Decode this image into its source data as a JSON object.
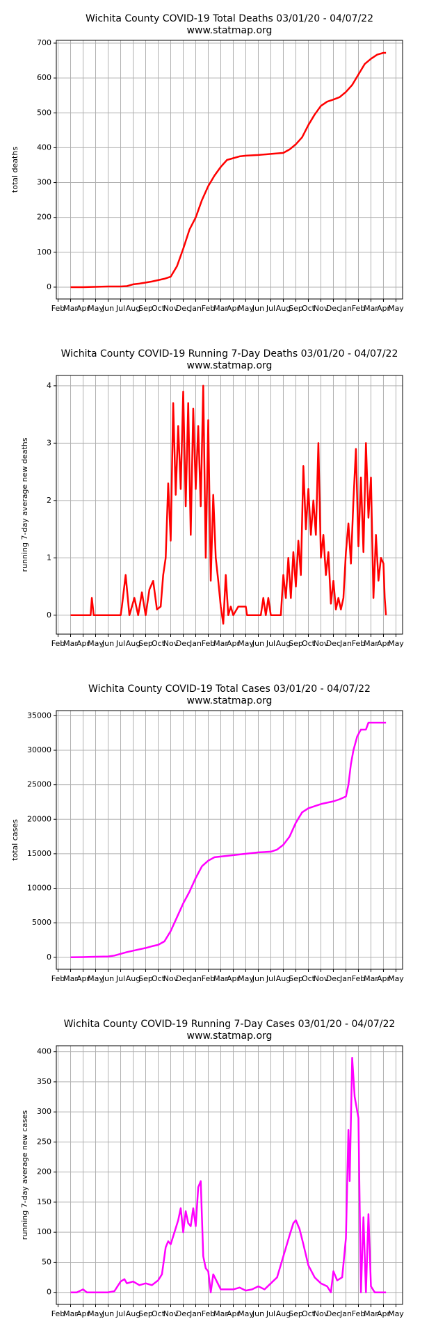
{
  "chart_data": [
    {
      "type": "line",
      "title": "Wichita County COVID-19 Total Deaths 03/01/20 - 04/07/22",
      "subtitle": "www.statmap.org",
      "y_label": "total deaths",
      "color": "#ff0000",
      "grid": true,
      "x": [
        1,
        2,
        3,
        4,
        5,
        5.5,
        6,
        6.5,
        7,
        7.5,
        8,
        8.5,
        9,
        9.5,
        10,
        10.5,
        11,
        11.5,
        12,
        12.5,
        13,
        13.5,
        14,
        14.5,
        15,
        16,
        17,
        18,
        18.5,
        19,
        19.5,
        20,
        20.5,
        21,
        21.5,
        22,
        22.5,
        23,
        23.5,
        24,
        24.5,
        25,
        25.5,
        26,
        26.2
      ],
      "values": [
        0,
        0,
        1,
        2,
        2,
        3,
        8,
        10,
        13,
        16,
        20,
        24,
        30,
        60,
        110,
        165,
        200,
        250,
        290,
        320,
        345,
        365,
        370,
        375,
        377,
        379,
        382,
        385,
        395,
        410,
        430,
        465,
        495,
        520,
        532,
        538,
        545,
        560,
        580,
        610,
        640,
        655,
        667,
        672,
        672
      ],
      "xlim": [
        -0.14,
        27.53
      ],
      "ylim": [
        -34,
        708
      ],
      "yticks": [
        0,
        100,
        200,
        300,
        400,
        500,
        600,
        700
      ],
      "xticks": [
        {
          "value": 0,
          "label": "Feb"
        },
        {
          "value": 1,
          "label": "Mar"
        },
        {
          "value": 2,
          "label": "Apr"
        },
        {
          "value": 3,
          "label": "May"
        },
        {
          "value": 4,
          "label": "Jun"
        },
        {
          "value": 5,
          "label": "Jul"
        },
        {
          "value": 6,
          "label": "Aug"
        },
        {
          "value": 7,
          "label": "Sep"
        },
        {
          "value": 8,
          "label": "Oct"
        },
        {
          "value": 9,
          "label": "Nov"
        },
        {
          "value": 10,
          "label": "Dec"
        },
        {
          "value": 11,
          "label": "Jan"
        },
        {
          "value": 12,
          "label": "Feb"
        },
        {
          "value": 13,
          "label": "Mar"
        },
        {
          "value": 14,
          "label": "Apr"
        },
        {
          "value": 15,
          "label": "May"
        },
        {
          "value": 16,
          "label": "Jun"
        },
        {
          "value": 17,
          "label": "Jul"
        },
        {
          "value": 18,
          "label": "Aug"
        },
        {
          "value": 19,
          "label": "Sep"
        },
        {
          "value": 20,
          "label": "Oct"
        },
        {
          "value": 21,
          "label": "Nov"
        },
        {
          "value": 22,
          "label": "Dec"
        },
        {
          "value": 23,
          "label": "Jan"
        },
        {
          "value": 24,
          "label": "Feb"
        },
        {
          "value": 25,
          "label": "Mar"
        },
        {
          "value": 26,
          "label": "Apr"
        },
        {
          "value": 27,
          "label": "May"
        }
      ]
    },
    {
      "type": "line",
      "title": "Wichita County COVID-19 Running 7-Day Deaths 03/01/20 - 04/07/22",
      "subtitle": "www.statmap.org",
      "y_label": "running 7-day average new deaths",
      "color": "#ff0000",
      "grid": true,
      "x": [
        1,
        2.6,
        2.7,
        2.85,
        5.0,
        5.1,
        5.4,
        5.7,
        6.1,
        6.4,
        6.7,
        7.0,
        7.3,
        7.6,
        7.9,
        8.2,
        8.4,
        8.6,
        8.8,
        9.0,
        9.2,
        9.4,
        9.6,
        9.8,
        10.0,
        10.2,
        10.4,
        10.6,
        10.8,
        11.0,
        11.2,
        11.4,
        11.6,
        11.8,
        12.0,
        12.2,
        12.4,
        12.6,
        12.8,
        13.0,
        13.2,
        13.4,
        13.6,
        13.8,
        14.0,
        14.4,
        15.0,
        15.1,
        16.2,
        16.4,
        16.6,
        16.8,
        17.0,
        17.8,
        18.0,
        18.2,
        18.4,
        18.6,
        18.8,
        19.0,
        19.2,
        19.4,
        19.6,
        19.8,
        20.0,
        20.2,
        20.4,
        20.6,
        20.8,
        21.0,
        21.2,
        21.4,
        21.6,
        21.8,
        22.0,
        22.2,
        22.4,
        22.6,
        22.8,
        23.0,
        23.2,
        23.4,
        23.6,
        23.8,
        24.0,
        24.2,
        24.4,
        24.6,
        24.8,
        25.0,
        25.2,
        25.4,
        25.6,
        25.8,
        26.0,
        26.1,
        26.2
      ],
      "values": [
        0,
        0,
        0.3,
        0,
        0,
        0.15,
        0.7,
        0,
        0.3,
        0,
        0.4,
        0,
        0.45,
        0.6,
        0.1,
        0.15,
        0.7,
        1.0,
        2.3,
        1.3,
        3.7,
        2.1,
        3.3,
        2.2,
        3.9,
        1.9,
        3.7,
        1.4,
        3.6,
        2.2,
        3.3,
        1.9,
        4.0,
        1.0,
        3.4,
        0.6,
        2.1,
        1.0,
        0.6,
        0.15,
        -0.15,
        0.7,
        0,
        0.15,
        0,
        0.15,
        0.15,
        0,
        0,
        0.3,
        0,
        0.3,
        0,
        0,
        0.7,
        0.3,
        1.0,
        0.3,
        1.1,
        0.5,
        1.3,
        0.7,
        2.6,
        1.5,
        2.2,
        1.4,
        2.0,
        1.4,
        3.0,
        1.0,
        1.4,
        0.7,
        1.1,
        0.2,
        0.6,
        0.1,
        0.3,
        0.1,
        0.3,
        1.1,
        1.6,
        0.9,
        2.0,
        2.9,
        1.2,
        2.4,
        1.1,
        3.0,
        1.7,
        2.4,
        0.3,
        1.4,
        0.6,
        1.0,
        0.9,
        0.3,
        0
      ],
      "xlim": [
        -0.14,
        27.53
      ],
      "ylim": [
        -0.33,
        4.18
      ],
      "yticks": [
        0,
        1,
        2,
        3,
        4
      ],
      "xticks": [
        {
          "value": 0,
          "label": "Feb"
        },
        {
          "value": 1,
          "label": "Mar"
        },
        {
          "value": 2,
          "label": "Apr"
        },
        {
          "value": 3,
          "label": "May"
        },
        {
          "value": 4,
          "label": "Jun"
        },
        {
          "value": 5,
          "label": "Jul"
        },
        {
          "value": 6,
          "label": "Aug"
        },
        {
          "value": 7,
          "label": "Sep"
        },
        {
          "value": 8,
          "label": "Oct"
        },
        {
          "value": 9,
          "label": "Nov"
        },
        {
          "value": 10,
          "label": "Dec"
        },
        {
          "value": 11,
          "label": "Jan"
        },
        {
          "value": 12,
          "label": "Feb"
        },
        {
          "value": 13,
          "label": "Mar"
        },
        {
          "value": 14,
          "label": "Apr"
        },
        {
          "value": 15,
          "label": "May"
        },
        {
          "value": 16,
          "label": "Jun"
        },
        {
          "value": 17,
          "label": "Jul"
        },
        {
          "value": 18,
          "label": "Aug"
        },
        {
          "value": 19,
          "label": "Sep"
        },
        {
          "value": 20,
          "label": "Oct"
        },
        {
          "value": 21,
          "label": "Nov"
        },
        {
          "value": 22,
          "label": "Dec"
        },
        {
          "value": 23,
          "label": "Jan"
        },
        {
          "value": 24,
          "label": "Feb"
        },
        {
          "value": 25,
          "label": "Mar"
        },
        {
          "value": 26,
          "label": "Apr"
        },
        {
          "value": 27,
          "label": "May"
        }
      ]
    },
    {
      "type": "line",
      "title": "Wichita County COVID-19 Total Cases 03/01/20 - 04/07/22",
      "subtitle": "www.statmap.org",
      "y_label": "total cases",
      "color": "#ff00ff",
      "grid": true,
      "x": [
        1,
        2,
        3,
        4,
        4.5,
        5,
        5.5,
        6,
        6.5,
        7,
        7.5,
        8,
        8.5,
        9,
        9.5,
        10,
        10.5,
        11,
        11.5,
        12,
        12.5,
        13,
        14,
        15,
        16,
        17,
        17.5,
        18,
        18.5,
        19,
        19.5,
        20,
        20.5,
        21,
        21.5,
        22,
        22.5,
        23,
        23.2,
        23.4,
        23.6,
        23.9,
        24.2,
        24.6,
        24.8,
        26.2
      ],
      "values": [
        0,
        30,
        80,
        120,
        250,
        500,
        750,
        950,
        1150,
        1350,
        1600,
        1800,
        2300,
        3800,
        5800,
        7800,
        9500,
        11500,
        13200,
        14000,
        14500,
        14600,
        14800,
        15000,
        15200,
        15300,
        15600,
        16300,
        17500,
        19500,
        21000,
        21600,
        21900,
        22200,
        22400,
        22600,
        22900,
        23300,
        25000,
        28000,
        30000,
        32000,
        33000,
        33000,
        34000,
        34000
      ],
      "xlim": [
        -0.14,
        27.53
      ],
      "ylim": [
        -1737,
        35745
      ],
      "yticks": [
        0,
        5000,
        10000,
        15000,
        20000,
        25000,
        30000,
        35000
      ],
      "xticks": [
        {
          "value": 0,
          "label": "Feb"
        },
        {
          "value": 1,
          "label": "Mar"
        },
        {
          "value": 2,
          "label": "Apr"
        },
        {
          "value": 3,
          "label": "May"
        },
        {
          "value": 4,
          "label": "Jun"
        },
        {
          "value": 5,
          "label": "Jul"
        },
        {
          "value": 6,
          "label": "Aug"
        },
        {
          "value": 7,
          "label": "Sep"
        },
        {
          "value": 8,
          "label": "Oct"
        },
        {
          "value": 9,
          "label": "Nov"
        },
        {
          "value": 10,
          "label": "Dec"
        },
        {
          "value": 11,
          "label": "Jan"
        },
        {
          "value": 12,
          "label": "Feb"
        },
        {
          "value": 13,
          "label": "Mar"
        },
        {
          "value": 14,
          "label": "Apr"
        },
        {
          "value": 15,
          "label": "May"
        },
        {
          "value": 16,
          "label": "Jun"
        },
        {
          "value": 17,
          "label": "Jul"
        },
        {
          "value": 18,
          "label": "Aug"
        },
        {
          "value": 19,
          "label": "Sep"
        },
        {
          "value": 20,
          "label": "Oct"
        },
        {
          "value": 21,
          "label": "Nov"
        },
        {
          "value": 22,
          "label": "Dec"
        },
        {
          "value": 23,
          "label": "Jan"
        },
        {
          "value": 24,
          "label": "Feb"
        },
        {
          "value": 25,
          "label": "Mar"
        },
        {
          "value": 26,
          "label": "Apr"
        },
        {
          "value": 27,
          "label": "May"
        }
      ]
    },
    {
      "type": "line",
      "title": "Wichita County COVID-19 Running 7-Day Cases 03/01/20 - 04/07/22",
      "subtitle": "www.statmap.org",
      "y_label": "running 7-day average new cases",
      "color": "#ff00ff",
      "grid": true,
      "x": [
        1,
        1.5,
        2,
        2.3,
        3,
        4,
        4.5,
        5,
        5.3,
        5.5,
        6,
        6.5,
        7,
        7.5,
        8,
        8.3,
        8.6,
        8.8,
        9,
        9.3,
        9.6,
        9.8,
        10,
        10.2,
        10.4,
        10.6,
        10.8,
        11.0,
        11.2,
        11.4,
        11.6,
        11.8,
        12.0,
        12.2,
        12.4,
        13,
        14,
        14.5,
        15,
        15.5,
        16,
        16.5,
        17,
        17.5,
        18,
        18.5,
        18.8,
        19,
        19.3,
        19.6,
        20,
        20.5,
        21,
        21.5,
        21.8,
        22,
        22.3,
        22.7,
        23,
        23.2,
        23.3,
        23.5,
        23.7,
        24,
        24.2,
        24.4,
        24.6,
        24.8,
        25,
        25.3,
        26.2
      ],
      "values": [
        0,
        0,
        5,
        0,
        0,
        0,
        2,
        18,
        22,
        15,
        18,
        12,
        15,
        12,
        20,
        30,
        75,
        85,
        80,
        100,
        120,
        140,
        100,
        135,
        115,
        110,
        140,
        110,
        175,
        185,
        60,
        40,
        35,
        0,
        30,
        5,
        5,
        8,
        3,
        5,
        10,
        5,
        15,
        25,
        60,
        95,
        115,
        120,
        105,
        80,
        45,
        25,
        15,
        10,
        0,
        35,
        20,
        25,
        90,
        270,
        185,
        390,
        325,
        290,
        0,
        125,
        0,
        130,
        10,
        0,
        0
      ],
      "xlim": [
        -0.14,
        27.53
      ],
      "ylim": [
        -20,
        410
      ],
      "yticks": [
        0,
        50,
        100,
        150,
        200,
        250,
        300,
        350,
        400
      ],
      "xticks": [
        {
          "value": 0,
          "label": "Feb"
        },
        {
          "value": 1,
          "label": "Mar"
        },
        {
          "value": 2,
          "label": "Apr"
        },
        {
          "value": 3,
          "label": "May"
        },
        {
          "value": 4,
          "label": "Jun"
        },
        {
          "value": 5,
          "label": "Jul"
        },
        {
          "value": 6,
          "label": "Aug"
        },
        {
          "value": 7,
          "label": "Sep"
        },
        {
          "value": 8,
          "label": "Oct"
        },
        {
          "value": 9,
          "label": "Nov"
        },
        {
          "value": 10,
          "label": "Dec"
        },
        {
          "value": 11,
          "label": "Jan"
        },
        {
          "value": 12,
          "label": "Feb"
        },
        {
          "value": 13,
          "label": "Mar"
        },
        {
          "value": 14,
          "label": "Apr"
        },
        {
          "value": 15,
          "label": "May"
        },
        {
          "value": 16,
          "label": "Jun"
        },
        {
          "value": 17,
          "label": "Jul"
        },
        {
          "value": 18,
          "label": "Aug"
        },
        {
          "value": 19,
          "label": "Sep"
        },
        {
          "value": 20,
          "label": "Oct"
        },
        {
          "value": 21,
          "label": "Nov"
        },
        {
          "value": 22,
          "label": "Dec"
        },
        {
          "value": 23,
          "label": "Jan"
        },
        {
          "value": 24,
          "label": "Feb"
        },
        {
          "value": 25,
          "label": "Mar"
        },
        {
          "value": 26,
          "label": "Apr"
        },
        {
          "value": 27,
          "label": "May"
        }
      ]
    }
  ]
}
